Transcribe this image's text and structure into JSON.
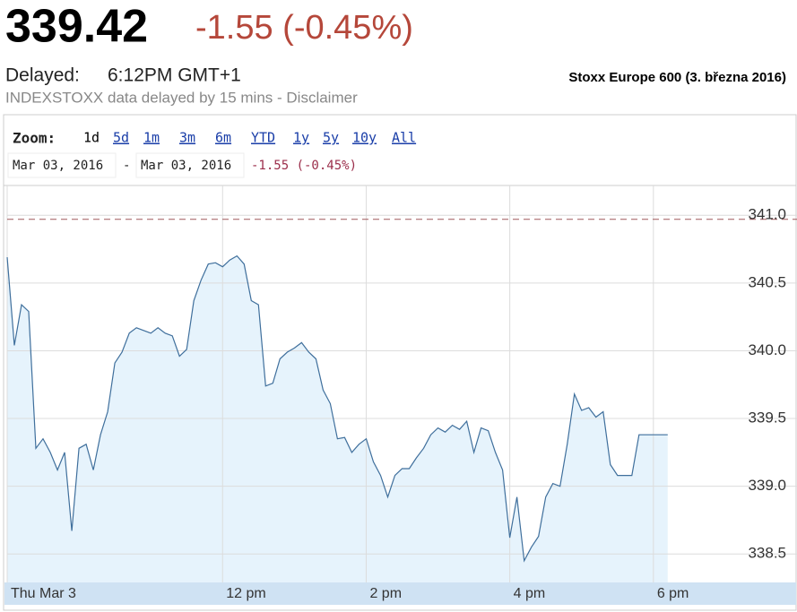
{
  "header": {
    "price": "339.42",
    "change": "-1.55 (-0.45%)",
    "delayed_label": "Delayed:",
    "delayed_time": "6:12PM GMT+1",
    "disclaimer": "INDEXSTOXX data delayed by 15 mins - Disclaimer",
    "title": "Stoxx Europe 600 (3. března 2016)"
  },
  "toolbar": {
    "zoom_label": "Zoom:",
    "zoom_options": [
      "1d",
      "5d",
      "1m",
      "3m",
      "6m",
      "YTD",
      "1y",
      "5y",
      "10y",
      "All"
    ],
    "range_start": "Mar 03, 2016",
    "range_separator": "-",
    "range_end": "Mar 03, 2016",
    "range_change": "-1.55 (-0.45%)"
  },
  "chart_data": {
    "type": "line",
    "x": [
      9.0,
      9.1,
      9.2,
      9.3,
      9.4,
      9.5,
      9.6,
      9.7,
      9.8,
      9.9,
      10.0,
      10.1,
      10.2,
      10.3,
      10.4,
      10.5,
      10.6,
      10.7,
      10.8,
      10.9,
      11.0,
      11.1,
      11.2,
      11.3,
      11.4,
      11.5,
      11.6,
      11.7,
      11.8,
      11.9,
      12.0,
      12.1,
      12.2,
      12.3,
      12.4,
      12.5,
      12.6,
      12.7,
      12.8,
      12.9,
      13.0,
      13.1,
      13.2,
      13.3,
      13.4,
      13.5,
      13.6,
      13.7,
      13.8,
      13.9,
      14.0,
      14.1,
      14.2,
      14.3,
      14.4,
      14.5,
      14.6,
      14.7,
      14.8,
      14.9,
      15.0,
      15.1,
      15.2,
      15.3,
      15.4,
      15.5,
      15.6,
      15.7,
      15.8,
      15.9,
      16.0,
      16.1,
      16.2,
      16.3,
      16.4,
      16.5,
      16.6,
      16.7,
      16.8,
      16.9,
      17.0,
      17.1,
      17.2,
      17.3,
      17.4,
      17.5,
      17.6,
      17.7,
      17.8,
      17.9,
      18.0,
      18.1,
      18.2
    ],
    "series": [
      {
        "color": "#3f6f9c",
        "values": [
          340.69,
          340.04,
          340.34,
          340.29,
          339.28,
          339.35,
          339.25,
          339.12,
          339.25,
          338.67,
          339.28,
          339.31,
          339.12,
          339.38,
          339.55,
          339.91,
          339.99,
          340.13,
          340.17,
          340.15,
          340.13,
          340.17,
          340.13,
          340.11,
          339.96,
          340.01,
          340.37,
          340.52,
          340.64,
          340.65,
          340.62,
          340.67,
          340.7,
          340.64,
          340.37,
          340.34,
          339.74,
          339.76,
          339.94,
          339.99,
          340.02,
          340.06,
          339.99,
          339.94,
          339.71,
          339.61,
          339.35,
          339.36,
          339.25,
          339.31,
          339.35,
          339.18,
          339.08,
          338.92,
          339.08,
          339.13,
          339.13,
          339.21,
          339.28,
          339.38,
          339.43,
          339.4,
          339.45,
          339.42,
          339.48,
          339.25,
          339.43,
          339.41,
          339.25,
          339.12,
          338.62,
          338.92,
          338.45,
          338.55,
          338.63,
          338.92,
          339.02,
          339.0,
          339.31,
          339.68,
          339.56,
          339.58,
          339.51,
          339.55,
          339.16,
          339.08,
          339.08,
          339.08,
          339.38,
          339.38,
          339.38,
          339.38,
          339.38
        ]
      }
    ],
    "fill": "#e6f3fc",
    "xlim": [
      9,
      20
    ],
    "xticks": [
      {
        "value": 9,
        "label": "Thu Mar 3"
      },
      {
        "value": 12,
        "label": "12 pm"
      },
      {
        "value": 14,
        "label": "2 pm"
      },
      {
        "value": 16,
        "label": "4 pm"
      },
      {
        "value": 18,
        "label": "6 pm"
      }
    ],
    "ylim": [
      338.29,
      341.22
    ],
    "yticks": [
      338.5,
      {
        "value": 339,
        "label": "339.0"
      },
      339.5,
      {
        "value": 340,
        "label": "340.0"
      },
      340.5,
      {
        "value": 341,
        "label": "341.0"
      }
    ],
    "reference_line": 340.97,
    "grid": true
  }
}
